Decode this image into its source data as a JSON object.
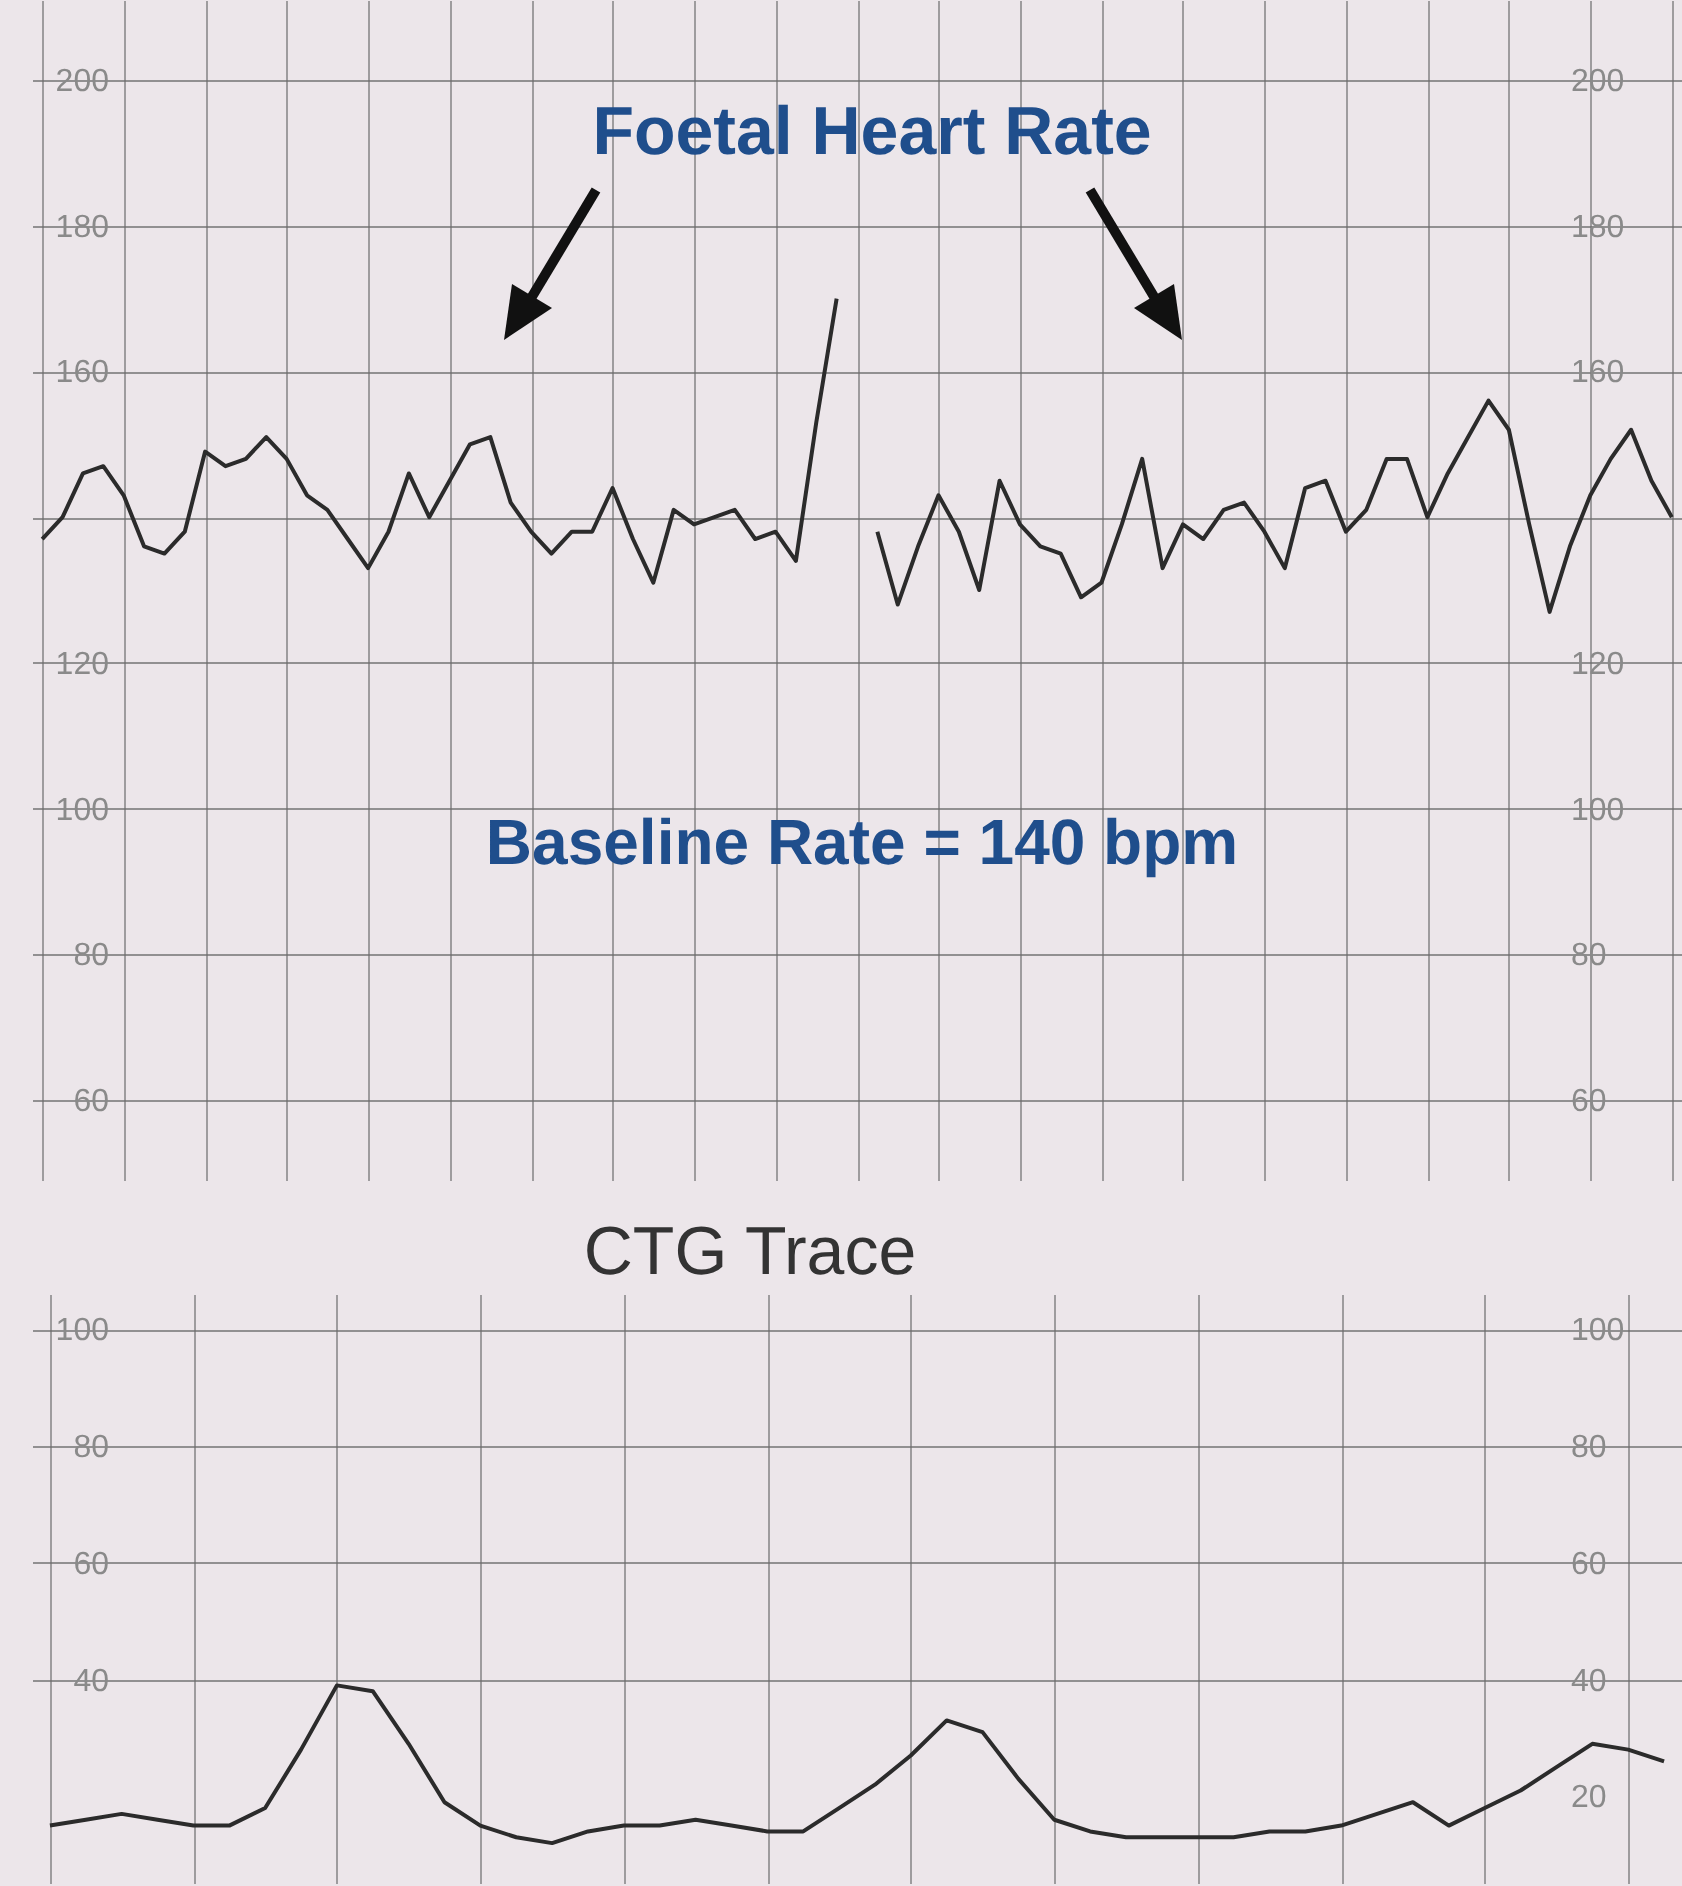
{
  "chart_data": [
    {
      "type": "line",
      "title": "Foetal Heart Rate",
      "annotations": [
        "Baseline Rate = 140 bpm"
      ],
      "categories": [
        null,
        null,
        null,
        null,
        null,
        null,
        null,
        null,
        null,
        null,
        null,
        null,
        null,
        null,
        null,
        null,
        null,
        null,
        null,
        null,
        null,
        null,
        null,
        null,
        null,
        null,
        null,
        null,
        null,
        null,
        null,
        null,
        null,
        null,
        null,
        null,
        null,
        null,
        null,
        null,
        null,
        null,
        null,
        null,
        null,
        null,
        null,
        null,
        null,
        null,
        null,
        null,
        null,
        null,
        null,
        null,
        null,
        null,
        null,
        null,
        null,
        null,
        null,
        null,
        null,
        null,
        null,
        null,
        null,
        null,
        null,
        null,
        null,
        null,
        null,
        null,
        null,
        null,
        null,
        null,
        null
      ],
      "series": [
        {
          "color": "#2b2b2b",
          "values": [
            137,
            140,
            146,
            147,
            143,
            136,
            135,
            138,
            149,
            147,
            148,
            151,
            148,
            143,
            141,
            137,
            133,
            138,
            146,
            140,
            145,
            150,
            151,
            142,
            138,
            135,
            138,
            138,
            144,
            137,
            131,
            141,
            139,
            140,
            141,
            137,
            138,
            134,
            153,
            170,
            null,
            138,
            128,
            136,
            143,
            138,
            130,
            145,
            139,
            136,
            135,
            129,
            131,
            139,
            148,
            133,
            139,
            137,
            141,
            142,
            138,
            133,
            144,
            145,
            138,
            141,
            148,
            148,
            140,
            146,
            151,
            156,
            152,
            139,
            127,
            136,
            143,
            148,
            152,
            145,
            140
          ]
        }
      ],
      "ylim": [
        49,
        211
      ],
      "yticks": [
        60,
        80,
        100,
        120,
        {
          "value": 140,
          "label": null
        },
        160,
        180,
        200
      ],
      "y2lim": [
        49,
        211
      ],
      "y2ticks": [
        60,
        80,
        100,
        120,
        160,
        180,
        200
      ],
      "grid": true,
      "marker": "none",
      "line_style": "solid"
    },
    {
      "type": "line",
      "title": "CTG Trace",
      "categories": [
        null,
        null,
        null,
        null,
        null,
        null,
        null,
        null,
        null,
        null,
        null,
        null,
        null,
        null,
        null,
        null,
        null,
        null,
        null,
        null,
        null,
        null,
        null,
        null,
        null,
        null,
        null,
        null,
        null,
        null,
        null,
        null,
        null,
        null,
        null,
        null,
        null,
        null,
        null,
        null,
        null,
        null,
        null,
        null,
        null,
        null
      ],
      "series": [
        {
          "color": "#2b2b2b",
          "values": [
            15,
            16,
            17,
            16,
            15,
            15,
            18,
            28,
            39,
            38,
            29,
            19,
            15,
            13,
            12,
            14,
            15,
            15,
            16,
            15,
            14,
            14,
            18,
            22,
            27,
            33,
            31,
            23,
            16,
            14,
            13,
            13,
            13,
            13,
            14,
            14,
            15,
            17,
            19,
            15,
            18,
            21,
            25,
            29,
            28,
            26
          ]
        }
      ],
      "ylim": [
        5,
        106
      ],
      "yticks": [
        40,
        60,
        80,
        100
      ],
      "y2lim": [
        5,
        106
      ],
      "y2ticks": [
        20,
        40,
        60,
        80,
        100
      ],
      "grid": true,
      "marker": "none",
      "line_style": "solid"
    }
  ]
}
